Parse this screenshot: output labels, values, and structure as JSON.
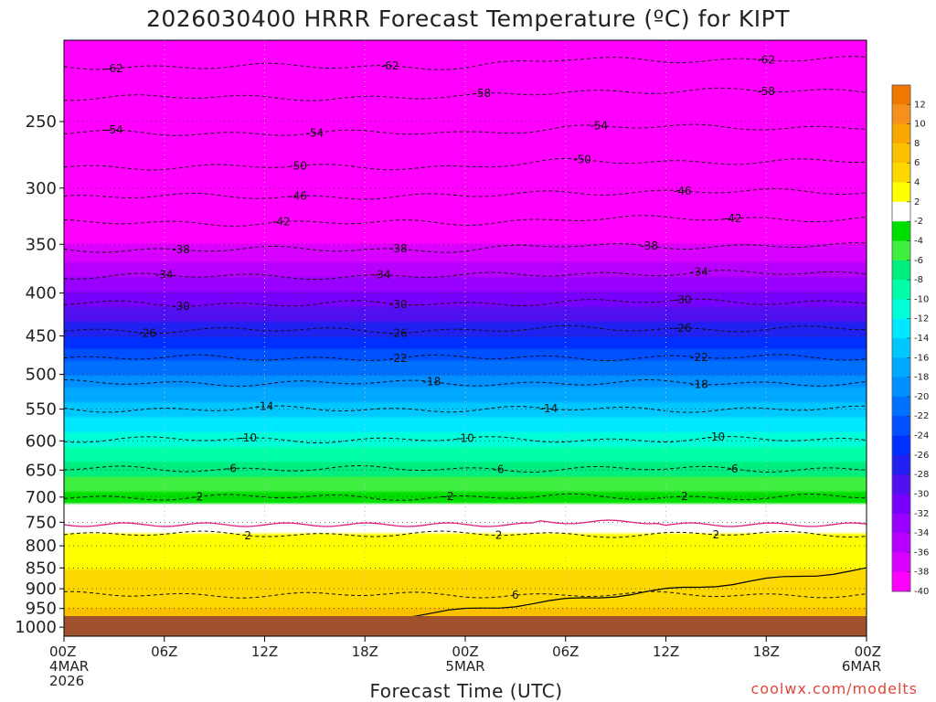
{
  "chart_data": {
    "type": "heatmap",
    "title": "2026030400 HRRR Forecast Temperature (ºC) for KIPT",
    "xlabel": "Forecast Time (UTC)",
    "ylabel": "",
    "y_ticks": [
      250,
      300,
      350,
      400,
      450,
      500,
      550,
      600,
      650,
      700,
      750,
      800,
      850,
      900,
      950,
      1000
    ],
    "ylim": [
      1025,
      200
    ],
    "y_scale": "log",
    "xlim": [
      0,
      48
    ],
    "x_ticks": [
      {
        "hour": 0,
        "label": "00Z",
        "sub": "4MAR",
        "sub2": "2026"
      },
      {
        "hour": 6,
        "label": "06Z",
        "sub": "",
        "sub2": ""
      },
      {
        "hour": 12,
        "label": "12Z",
        "sub": "",
        "sub2": ""
      },
      {
        "hour": 18,
        "label": "18Z",
        "sub": "",
        "sub2": ""
      },
      {
        "hour": 24,
        "label": "00Z",
        "sub": "5MAR",
        "sub2": ""
      },
      {
        "hour": 30,
        "label": "06Z",
        "sub": "",
        "sub2": ""
      },
      {
        "hour": 36,
        "label": "12Z",
        "sub": "",
        "sub2": ""
      },
      {
        "hour": 42,
        "label": "18Z",
        "sub": "",
        "sub2": ""
      },
      {
        "hour": 48,
        "label": "00Z",
        "sub": "6MAR",
        "sub2": ""
      }
    ],
    "grid": true,
    "colorbar": {
      "placement": "right",
      "labels": [
        "12",
        "10",
        "8",
        "6",
        "4",
        "2",
        "-2",
        "-4",
        "-6",
        "-8",
        "-10",
        "-12",
        "-14",
        "-16",
        "-18",
        "-20",
        "-22",
        "-24",
        "-26",
        "-28",
        "-30",
        "-32",
        "-34",
        "-36",
        "-38",
        "-40"
      ],
      "colors": [
        "#f07800",
        "#f5901a",
        "#f8a800",
        "#fbc000",
        "#fdd800",
        "#ffff00",
        "#ffffff",
        "#00e000",
        "#40f040",
        "#00ee80",
        "#00ffa8",
        "#00ffd8",
        "#00e8ff",
        "#00c8ff",
        "#00a8ff",
        "#0090ff",
        "#0070ff",
        "#0050ff",
        "#0030ff",
        "#2020f0",
        "#5010f0",
        "#7800ff",
        "#9800ff",
        "#b800ff",
        "#d800ff",
        "#ff00ff"
      ]
    },
    "temperature_profile": [
      {
        "p": 200,
        "t": -66
      },
      {
        "p": 250,
        "t": -55
      },
      {
        "p": 300,
        "t": -46
      },
      {
        "p": 350,
        "t": -38
      },
      {
        "p": 400,
        "t": -32
      },
      {
        "p": 450,
        "t": -26
      },
      {
        "p": 500,
        "t": -20
      },
      {
        "p": 550,
        "t": -15
      },
      {
        "p": 600,
        "t": -11
      },
      {
        "p": 650,
        "t": -7
      },
      {
        "p": 700,
        "t": -3
      },
      {
        "p": 750,
        "t": 1
      },
      {
        "p": 800,
        "t": 3
      },
      {
        "p": 850,
        "t": 4
      },
      {
        "p": 900,
        "t": 5
      },
      {
        "p": 950,
        "t": 6
      },
      {
        "p": 1000,
        "t": 7
      }
    ],
    "contours": [
      {
        "label": "-62",
        "p": 215,
        "label_hours": [
          3,
          19.5,
          42
        ]
      },
      {
        "label": "-58",
        "p": 234,
        "label_hours": [
          25,
          42
        ]
      },
      {
        "label": "-54",
        "p": 258,
        "label_hours": [
          3,
          15,
          32
        ]
      },
      {
        "label": "-50",
        "p": 283,
        "label_hours": [
          14,
          31
        ]
      },
      {
        "label": "-46",
        "p": 307,
        "label_hours": [
          14,
          37
        ]
      },
      {
        "label": "-42",
        "p": 330,
        "label_hours": [
          13,
          40
        ]
      },
      {
        "label": "-38",
        "p": 355,
        "label_hours": [
          7,
          20,
          35
        ]
      },
      {
        "label": "-34",
        "p": 382,
        "label_hours": [
          6,
          19,
          38
        ]
      },
      {
        "label": "-30",
        "p": 412,
        "label_hours": [
          7,
          20,
          37
        ]
      },
      {
        "label": "-26",
        "p": 443,
        "label_hours": [
          5,
          20,
          37
        ]
      },
      {
        "label": "-22",
        "p": 478,
        "label_hours": [
          20,
          38
        ]
      },
      {
        "label": "-18",
        "p": 512,
        "label_hours": [
          22,
          38
        ]
      },
      {
        "label": "-14",
        "p": 550,
        "label_hours": [
          12,
          29
        ]
      },
      {
        "label": "-10",
        "p": 598,
        "label_hours": [
          11,
          24,
          39
        ]
      },
      {
        "label": "-6",
        "p": 648,
        "label_hours": [
          10,
          26,
          40
        ]
      },
      {
        "label": "-2",
        "p": 700,
        "label_hours": [
          8,
          23,
          37
        ]
      },
      {
        "label": "2",
        "p": 775,
        "label_hours": [
          11,
          26,
          39
        ]
      },
      {
        "label": "6",
        "p": 915,
        "label_hours": [
          27
        ]
      }
    ]
  },
  "watermark": "coolwx.com/modelts"
}
